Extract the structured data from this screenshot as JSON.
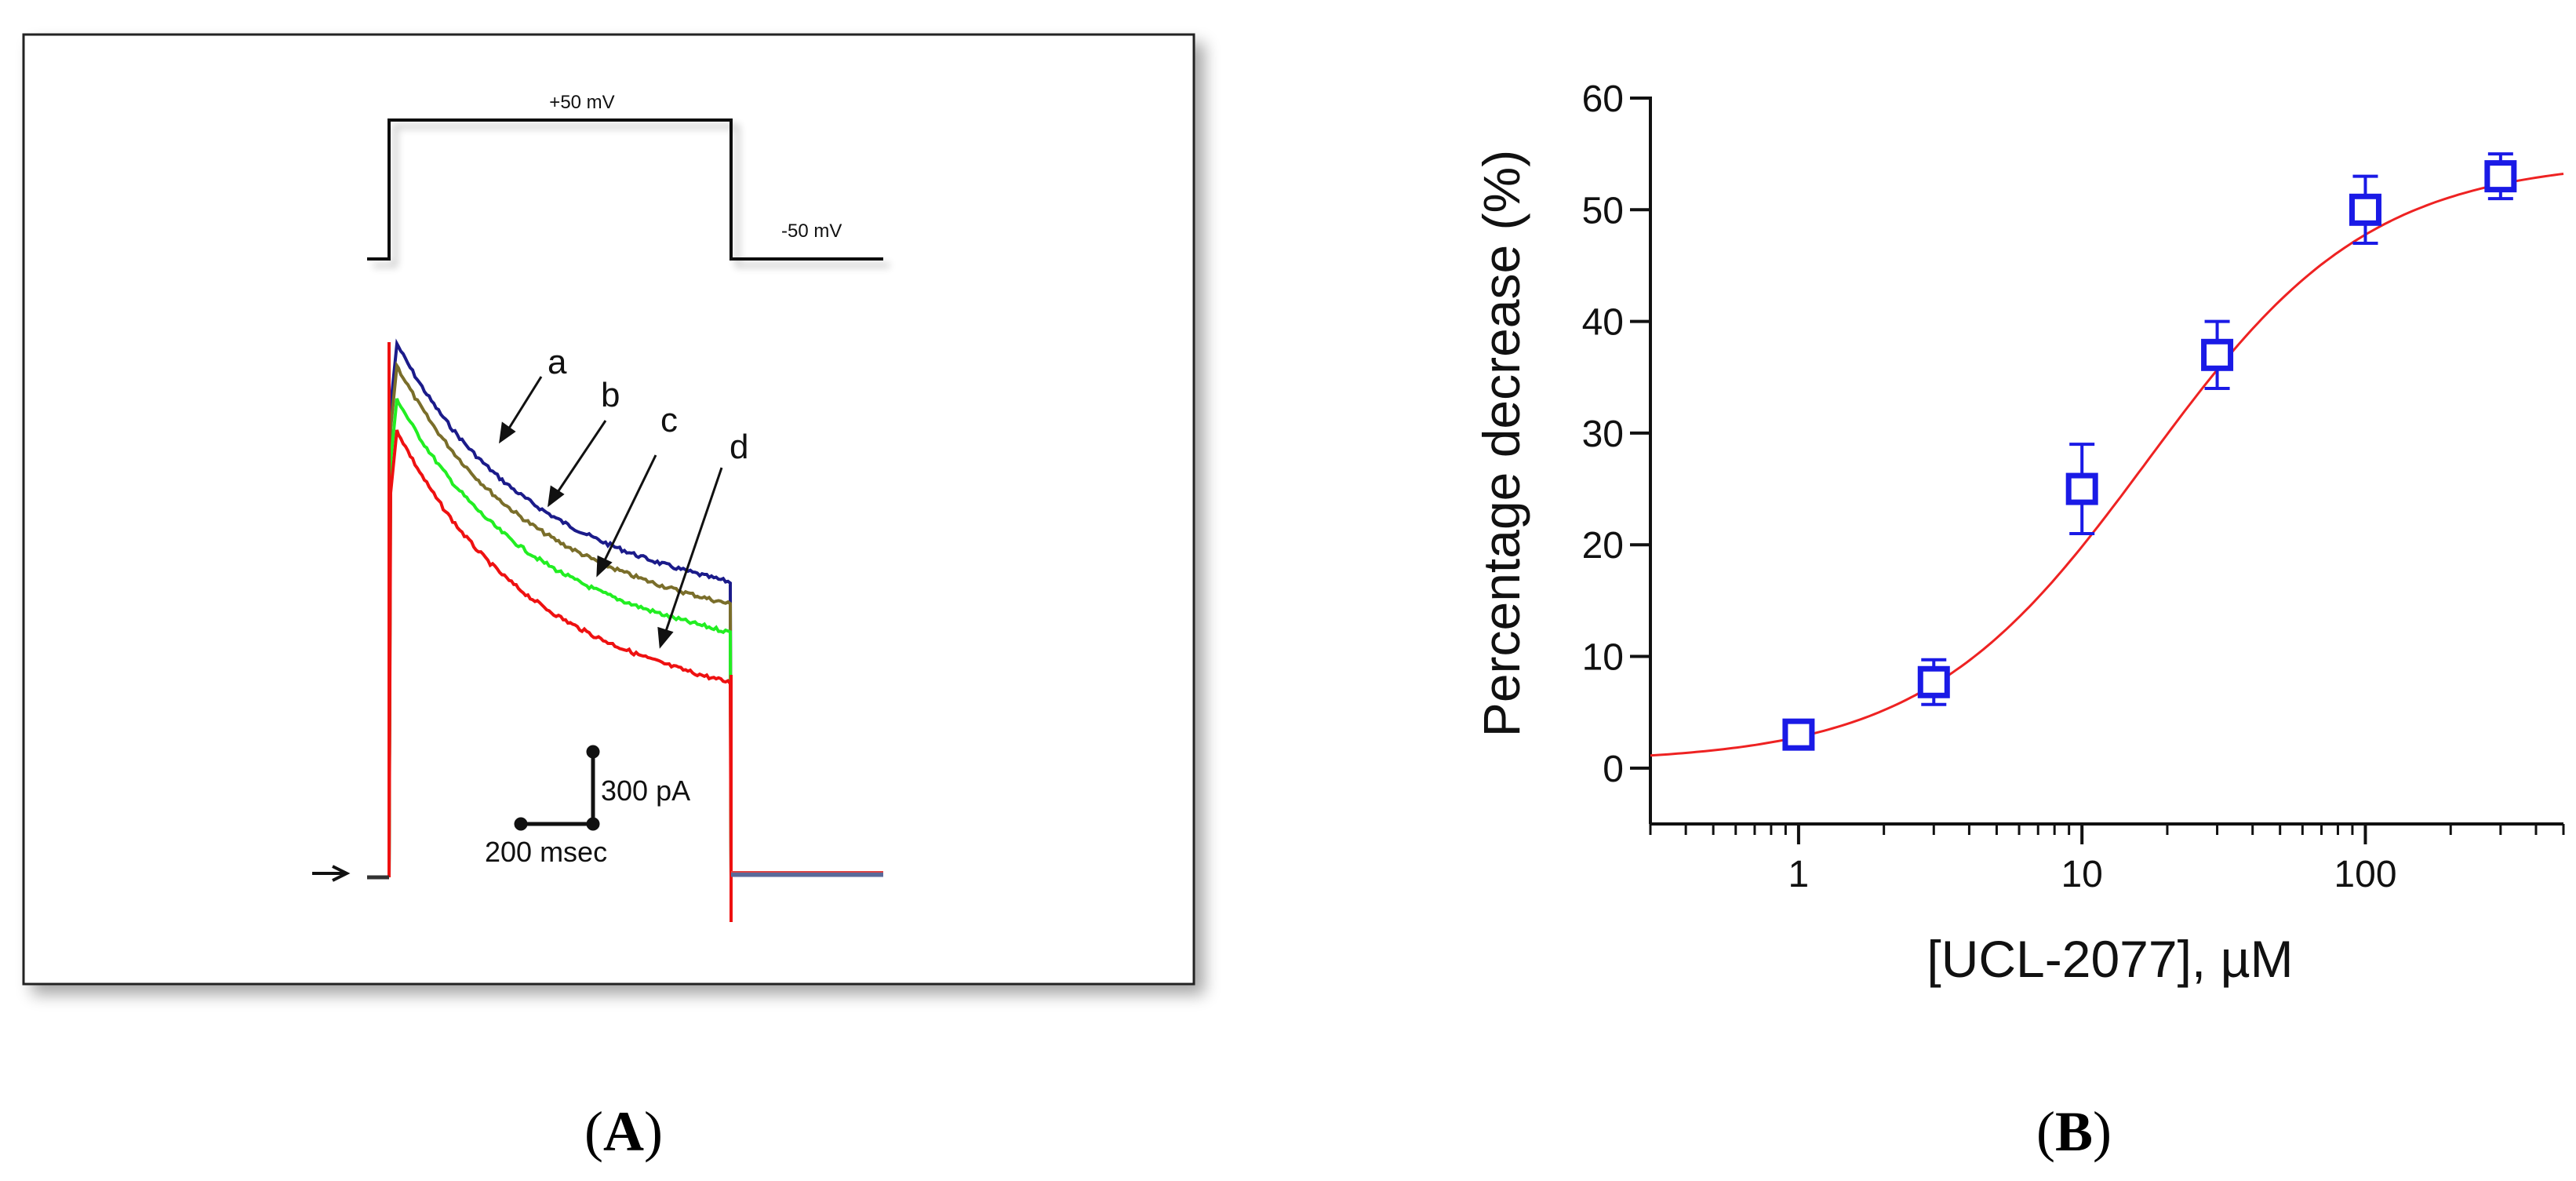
{
  "panel_a": {
    "voltage_high": "+50 mV",
    "voltage_low": "-50 mV",
    "trace_labels": [
      "a",
      "b",
      "c",
      "d"
    ],
    "trace_colors": [
      "#1b1b8a",
      "#7a6e2a",
      "#22ee22",
      "#ee1111"
    ],
    "scale_current": "300 pA",
    "scale_time": "200 msec",
    "caption_open": "(",
    "caption_letter": "A",
    "caption_close": ")"
  },
  "panel_b": {
    "caption_open": "(",
    "caption_letter": "B",
    "caption_close": ")"
  },
  "chart_data": {
    "type": "scatter",
    "xlabel": "[UCL-2077], µM",
    "ylabel": "Percentage decrease (%)",
    "xscale": "log",
    "xlim": [
      0.3,
      500
    ],
    "ylim": [
      -5,
      60
    ],
    "xticks": [
      1,
      10,
      100
    ],
    "xtick_labels": [
      "1",
      "10",
      "100"
    ],
    "yticks": [
      0,
      10,
      20,
      30,
      40,
      50,
      60
    ],
    "ytick_labels": [
      "0",
      "10",
      "20",
      "30",
      "40",
      "50",
      "60"
    ],
    "marker_color": "#1a1ae6",
    "fit_color": "#ee2222",
    "points": [
      {
        "x": 1,
        "y": 3,
        "err": 0.8
      },
      {
        "x": 3,
        "y": 7.7,
        "err": 2
      },
      {
        "x": 10,
        "y": 25,
        "err": 4
      },
      {
        "x": 30,
        "y": 37,
        "err": 3
      },
      {
        "x": 100,
        "y": 50,
        "err": 3
      },
      {
        "x": 300,
        "y": 53,
        "err": 2
      }
    ],
    "fit": {
      "model": "hill",
      "bottom": 0.5,
      "top": 54.5,
      "ic50": 17,
      "hill": 1.1
    }
  }
}
